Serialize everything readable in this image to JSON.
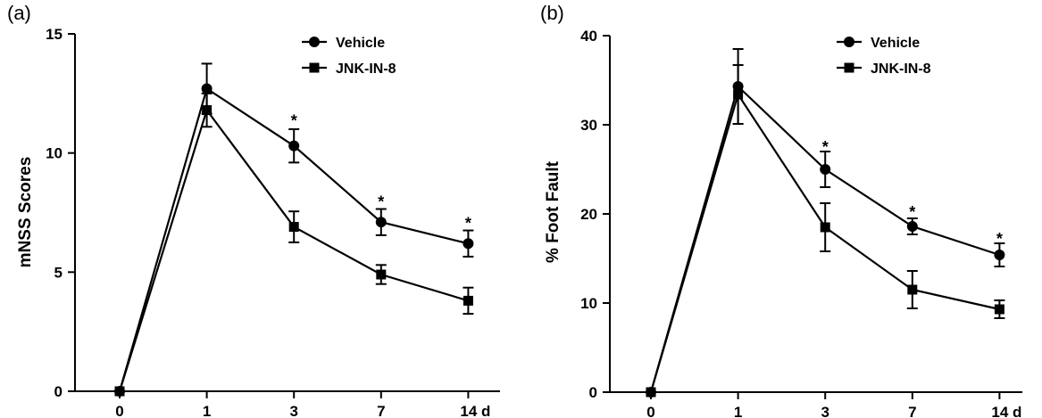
{
  "chart_data": [
    {
      "type": "line",
      "panel_label": "(a)",
      "ylabel": "mNSS Scores",
      "xlabel": "",
      "categories": [
        "0",
        "1",
        "3",
        "7",
        "14 d"
      ],
      "ylim": [
        0,
        15
      ],
      "yticks": [
        0,
        5,
        10,
        15
      ],
      "legend_position": "top-right",
      "grid": false,
      "series": [
        {
          "name": "Vehicle",
          "marker": "circle",
          "values": [
            0,
            12.7,
            10.3,
            7.1,
            6.2
          ],
          "errors": [
            0,
            1.05,
            0.7,
            0.55,
            0.55
          ]
        },
        {
          "name": "JNK-IN-8",
          "marker": "square",
          "values": [
            0,
            11.8,
            6.9,
            4.9,
            3.8
          ],
          "errors": [
            0,
            0.7,
            0.65,
            0.4,
            0.55
          ]
        }
      ],
      "annotations": [
        {
          "text": "*",
          "category": "3",
          "y": 11.5
        },
        {
          "text": "*",
          "category": "7",
          "y": 8.1
        },
        {
          "text": "*",
          "category": "14 d",
          "y": 7.2
        }
      ]
    },
    {
      "type": "line",
      "panel_label": "(b)",
      "ylabel": "% Foot Fault",
      "xlabel": "",
      "categories": [
        "0",
        "1",
        "3",
        "7",
        "14 d"
      ],
      "ylim": [
        0,
        40
      ],
      "yticks": [
        0,
        10,
        20,
        30,
        40
      ],
      "legend_position": "top-right",
      "grid": false,
      "series": [
        {
          "name": "Vehicle",
          "marker": "circle",
          "values": [
            0,
            34.3,
            25.0,
            18.6,
            15.4
          ],
          "errors": [
            0,
            4.2,
            2.0,
            0.9,
            1.3
          ]
        },
        {
          "name": "JNK-IN-8",
          "marker": "square",
          "values": [
            0,
            33.4,
            18.5,
            11.5,
            9.3
          ],
          "errors": [
            0,
            3.3,
            2.7,
            2.1,
            1.0
          ]
        }
      ],
      "annotations": [
        {
          "text": "*",
          "category": "3",
          "y": 27.9
        },
        {
          "text": "*",
          "category": "7",
          "y": 20.6
        },
        {
          "text": "*",
          "category": "14 d",
          "y": 17.6
        }
      ]
    }
  ]
}
